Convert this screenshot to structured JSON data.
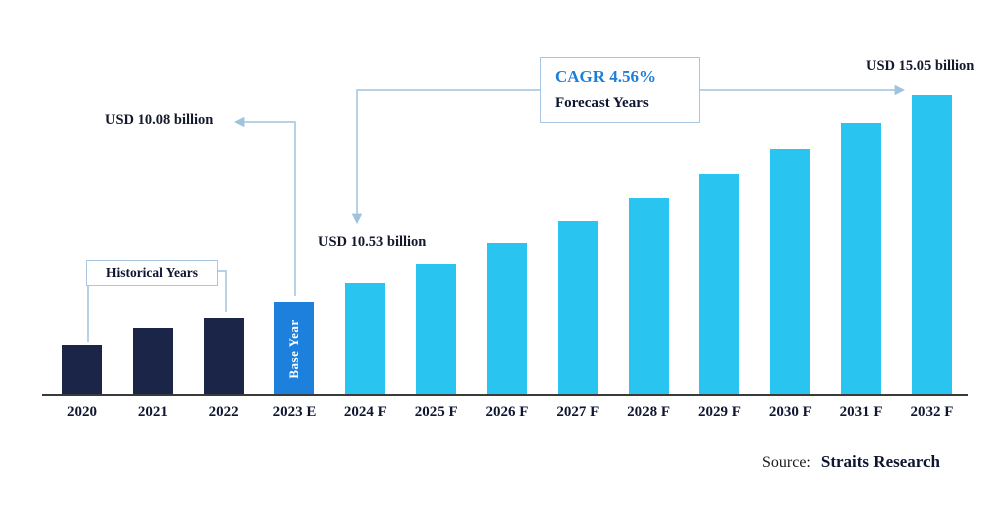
{
  "chart_data": {
    "type": "bar",
    "title": "",
    "categories": [
      "2020",
      "2021",
      "2022",
      "2023 E",
      "2024 F",
      "2025 F",
      "2026 F",
      "2027 F",
      "2028 F",
      "2029 F",
      "2030 F",
      "2031 F",
      "2032 F"
    ],
    "values": [
      9.05,
      9.45,
      9.7,
      10.08,
      10.53,
      11.01,
      11.51,
      12.04,
      12.59,
      13.16,
      13.76,
      14.39,
      15.05
    ],
    "unit": "USD billion",
    "bar_types": [
      "historical",
      "historical",
      "historical",
      "base_year",
      "forecast",
      "forecast",
      "forecast",
      "forecast",
      "forecast",
      "forecast",
      "forecast",
      "forecast",
      "forecast"
    ],
    "data_labels": {
      "2023 E": "USD 10.08 billion",
      "2024 F": "USD 10.53 billion",
      "2032 F": "USD 15.05 billion"
    },
    "ylim": [
      7.85,
      15.3
    ],
    "grid": false,
    "legend": "none",
    "xlabel": "",
    "ylabel": ""
  },
  "annotations": {
    "historical_label": "Historical Years",
    "base_year_label": "Base Year",
    "cagr_label": "CAGR 4.56%",
    "forecast_label": "Forecast Years",
    "value_2023": "USD 10.08 billion",
    "value_2024": "USD 10.53 billion",
    "value_2032": "USD 15.05 billion"
  },
  "source": {
    "prefix": "Source:",
    "name": "Straits Research"
  },
  "colors": {
    "historical": "#1b2547",
    "base_year": "#1d80dd",
    "forecast": "#29c4f0",
    "connector": "#9fc3dd",
    "cagr_text": "#1b7fd8",
    "dark_text": "#0d1530"
  }
}
